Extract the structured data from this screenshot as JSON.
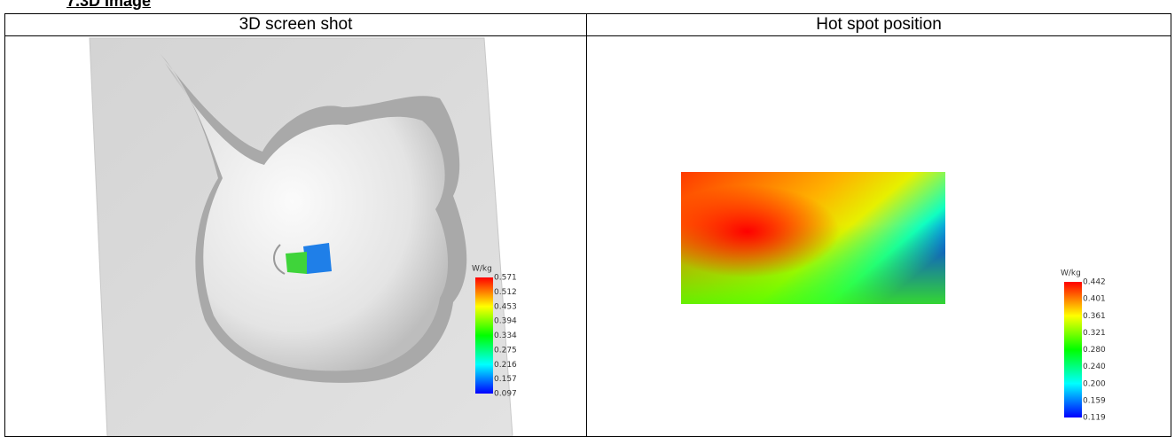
{
  "header": {
    "title": "7.3D Image"
  },
  "table": {
    "headers": [
      "3D screen shot",
      "Hot spot position"
    ]
  },
  "left_colorbar": {
    "unit": "W/kg",
    "labels": [
      "0.571",
      "0.512",
      "0.453",
      "0.394",
      "0.334",
      "0.275",
      "0.216",
      "0.157",
      "0.097"
    ]
  },
  "right_colorbar": {
    "unit": "W/kg",
    "labels": [
      "0.442",
      "0.401",
      "0.361",
      "0.321",
      "0.280",
      "0.240",
      "0.200",
      "0.159",
      "0.119"
    ]
  }
}
